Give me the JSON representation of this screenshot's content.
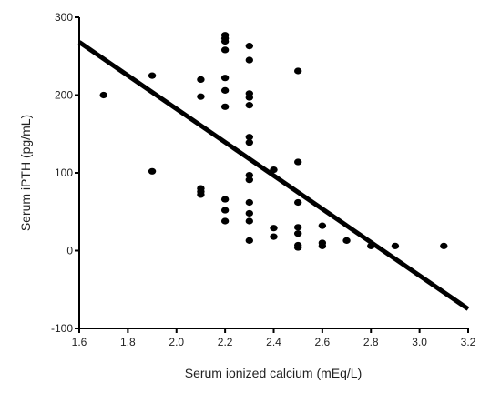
{
  "chart_data": {
    "type": "scatter",
    "title": "",
    "xlabel": "Serum ionized calcium (mEq/L)",
    "ylabel": "Serum iPTH (pg/mL)",
    "xlim": [
      1.6,
      3.2
    ],
    "ylim": [
      -100,
      300
    ],
    "x_ticks": [
      1.6,
      1.8,
      2.0,
      2.2,
      2.4,
      2.6,
      2.8,
      3.0,
      3.2
    ],
    "x_tick_labels": [
      "1.6",
      "1.8",
      "2.0",
      "2.2",
      "2.4",
      "2.6",
      "2.8",
      "3.0",
      "3.2"
    ],
    "y_ticks": [
      -100,
      0,
      100,
      200,
      300
    ],
    "y_tick_labels": [
      "-100",
      "0",
      "100",
      "200",
      "300"
    ],
    "grid": false,
    "legend": "none",
    "point_color": "#000000",
    "line_color": "#000000",
    "points": [
      {
        "x": 1.7,
        "y": 200
      },
      {
        "x": 1.9,
        "y": 225
      },
      {
        "x": 1.9,
        "y": 102
      },
      {
        "x": 2.1,
        "y": 220
      },
      {
        "x": 2.1,
        "y": 198
      },
      {
        "x": 2.1,
        "y": 80
      },
      {
        "x": 2.1,
        "y": 76
      },
      {
        "x": 2.1,
        "y": 72
      },
      {
        "x": 2.2,
        "y": 277
      },
      {
        "x": 2.2,
        "y": 273
      },
      {
        "x": 2.2,
        "y": 269
      },
      {
        "x": 2.2,
        "y": 258
      },
      {
        "x": 2.2,
        "y": 222
      },
      {
        "x": 2.2,
        "y": 206
      },
      {
        "x": 2.2,
        "y": 185
      },
      {
        "x": 2.2,
        "y": 66
      },
      {
        "x": 2.2,
        "y": 52
      },
      {
        "x": 2.2,
        "y": 38
      },
      {
        "x": 2.3,
        "y": 263
      },
      {
        "x": 2.3,
        "y": 245
      },
      {
        "x": 2.3,
        "y": 202
      },
      {
        "x": 2.3,
        "y": 197
      },
      {
        "x": 2.3,
        "y": 187
      },
      {
        "x": 2.3,
        "y": 146
      },
      {
        "x": 2.3,
        "y": 139
      },
      {
        "x": 2.3,
        "y": 97
      },
      {
        "x": 2.3,
        "y": 91
      },
      {
        "x": 2.3,
        "y": 62
      },
      {
        "x": 2.3,
        "y": 48
      },
      {
        "x": 2.3,
        "y": 38
      },
      {
        "x": 2.3,
        "y": 13
      },
      {
        "x": 2.4,
        "y": 104
      },
      {
        "x": 2.4,
        "y": 29
      },
      {
        "x": 2.4,
        "y": 18
      },
      {
        "x": 2.5,
        "y": 231
      },
      {
        "x": 2.5,
        "y": 114
      },
      {
        "x": 2.5,
        "y": 62
      },
      {
        "x": 2.5,
        "y": 30
      },
      {
        "x": 2.5,
        "y": 22
      },
      {
        "x": 2.5,
        "y": 7
      },
      {
        "x": 2.5,
        "y": 4
      },
      {
        "x": 2.6,
        "y": 32
      },
      {
        "x": 2.6,
        "y": 10
      },
      {
        "x": 2.6,
        "y": 6
      },
      {
        "x": 2.7,
        "y": 13
      },
      {
        "x": 2.8,
        "y": 6
      },
      {
        "x": 2.9,
        "y": 6
      },
      {
        "x": 3.1,
        "y": 6
      }
    ],
    "trendline": {
      "x": [
        1.6,
        3.2
      ],
      "y": [
        268,
        -75
      ]
    }
  }
}
